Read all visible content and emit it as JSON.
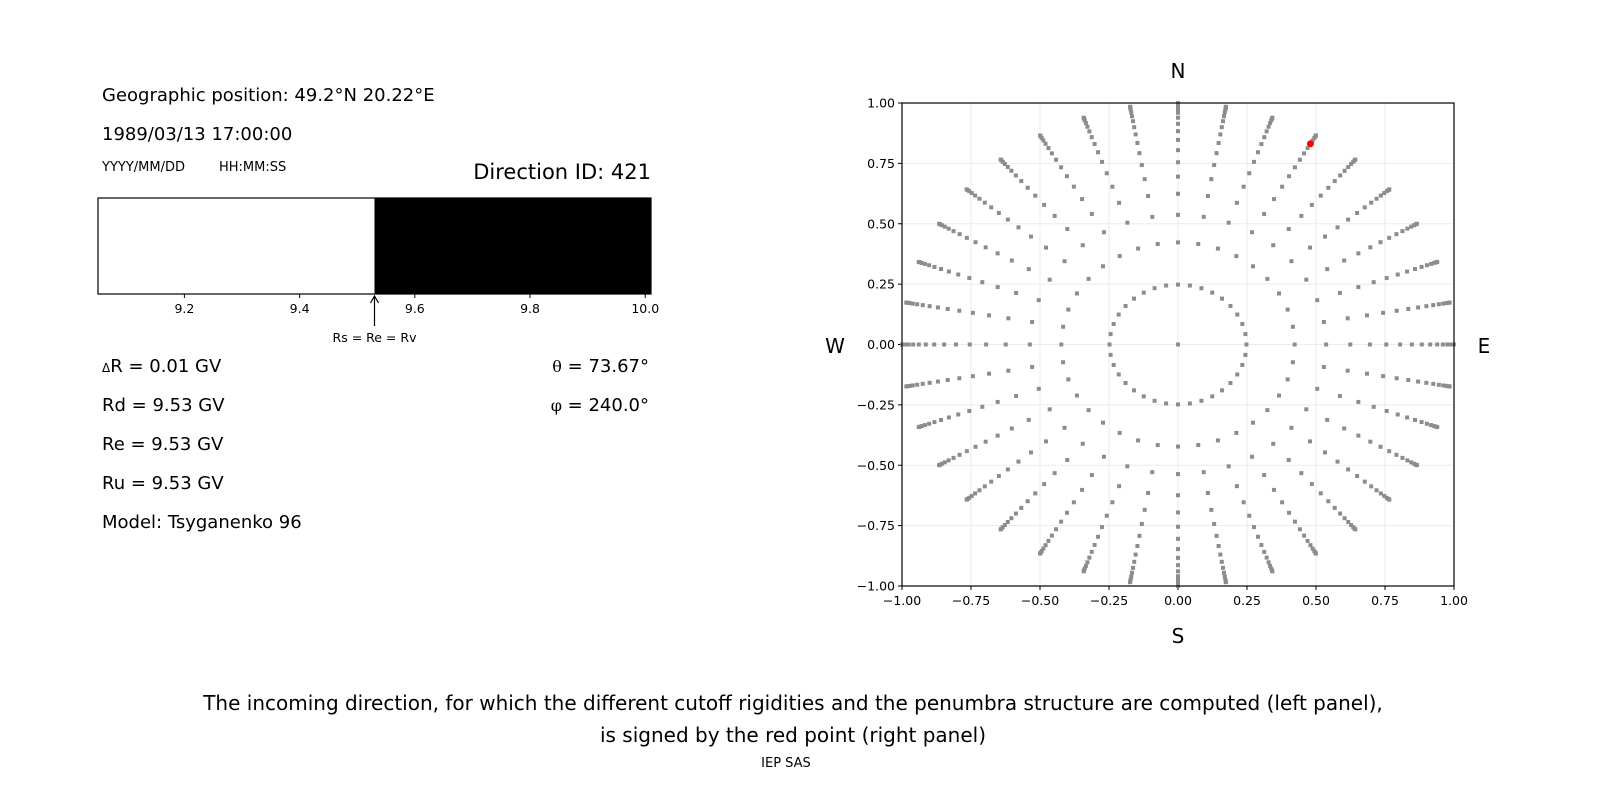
{
  "left_panel": {
    "position": "Geographic position: 49.2°N 20.22°E",
    "datetime": "1989/03/13 17:00:00",
    "date_format": "YYYY/MM/DD",
    "time_format": "HH:MM:SS",
    "direction_id": "Direction ID: 421",
    "delta_r_symbol": "Δ",
    "delta_r": "R = 0.01 GV",
    "rd": "Rd = 9.53 GV",
    "re": "Re = 9.53 GV",
    "ru": "Ru = 9.53 GV",
    "model": "Model: Tsyganenko 96",
    "theta_symbol": "θ",
    "theta": " = 73.67°",
    "phi_symbol": "φ",
    "phi": " = 240.0°"
  },
  "caption": {
    "line1": "The incoming direction, for which the different cutoff rigidities and the penumbra structure are computed (left panel),",
    "line2": "is signed by the red point (right panel)",
    "credit": "IEP SAS"
  },
  "chart_data": [
    {
      "type": "bar",
      "description_kind": "penumbra",
      "xlim": [
        9.05,
        10.01
      ],
      "segments": [
        {
          "from": 9.05,
          "to": 9.53,
          "color": "#ffffff"
        },
        {
          "from": 9.53,
          "to": 10.01,
          "color": "#000000"
        }
      ],
      "xticks": [
        9.2,
        9.4,
        9.6,
        9.8,
        10.0
      ],
      "xtick_labels": [
        "9.2",
        "9.4",
        "9.6",
        "9.8",
        "10.0"
      ],
      "marker": {
        "value": 9.53,
        "label": "Rs = Re = Rv"
      }
    },
    {
      "type": "scatter",
      "xlim": [
        -1,
        1
      ],
      "ylim": [
        -1,
        1
      ],
      "grid": true,
      "xticks": [
        -1.0,
        -0.75,
        -0.5,
        -0.25,
        0.0,
        0.25,
        0.5,
        0.75,
        1.0
      ],
      "xtick_labels": [
        "−1.00",
        "−0.75",
        "−0.50",
        "−0.25",
        "0.00",
        "0.25",
        "0.50",
        "0.75",
        "1.00"
      ],
      "yticks": [
        -1.0,
        -0.75,
        -0.5,
        -0.25,
        0.0,
        0.25,
        0.5,
        0.75,
        1.0
      ],
      "ytick_labels": [
        "−1.00",
        "−0.75",
        "−0.50",
        "−0.25",
        "0.00",
        "0.25",
        "0.50",
        "0.75",
        "1.00"
      ],
      "direction_labels": {
        "top": "N",
        "bottom": "S",
        "left": "W",
        "right": "E"
      },
      "points": {
        "color": "#8c8c8c",
        "center_point": true,
        "ring_cos_zenith": [
          0.96875,
          0.90625,
          0.84375,
          0.78125,
          0.71875,
          0.65625,
          0.59375,
          0.53125,
          0.46875,
          0.40625,
          0.34375,
          0.28125,
          0.21875,
          0.15625,
          0.09375,
          0.03125
        ],
        "azimuth_step_deg": 10
      },
      "highlight": {
        "theta_deg": 73.67,
        "phi_deg": 240.0,
        "color": "#ff0000"
      }
    }
  ]
}
